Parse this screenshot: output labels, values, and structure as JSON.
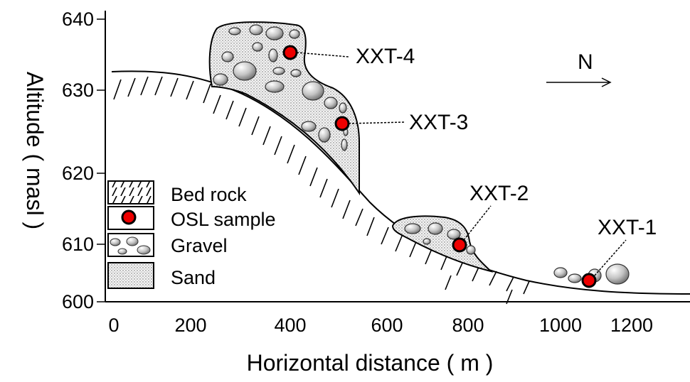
{
  "x_axis": {
    "title": "Horizontal distance ( m )",
    "ticks": [
      "0",
      "200",
      "400",
      "600",
      "800",
      "1000",
      "1200"
    ]
  },
  "y_axis": {
    "title": "Altitude ( masl )",
    "ticks": [
      "600",
      "610",
      "620",
      "630",
      "640"
    ]
  },
  "north_label": "N",
  "samples": [
    {
      "id": "XXT-4",
      "x_m": 460,
      "altitude_masl": 635.5
    },
    {
      "id": "XXT-3",
      "x_m": 585,
      "altitude_masl": 626.5
    },
    {
      "id": "XXT-2",
      "x_m": 845,
      "altitude_masl": 610
    },
    {
      "id": "XXT-1",
      "x_m": 1145,
      "altitude_masl": 603
    }
  ],
  "legend": [
    {
      "key": "bedrock",
      "label": "Bed rock"
    },
    {
      "key": "osl",
      "label": "OSL sample"
    },
    {
      "key": "gravel",
      "label": "Gravel"
    },
    {
      "key": "sand",
      "label": "Sand"
    }
  ],
  "colors": {
    "osl_fill": "#ee0000",
    "sand_fill": "#f2f2f2",
    "gravel_fill": "#cfcfcf",
    "line": "#000000"
  }
}
